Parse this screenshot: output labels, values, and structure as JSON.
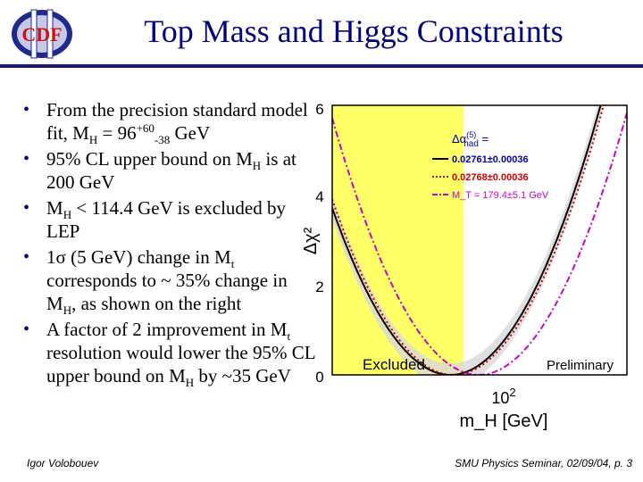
{
  "logo": {
    "letters": "CDF",
    "roman": "II"
  },
  "title": "Top Mass and Higgs Constraints",
  "bullets": [
    {
      "a": "From the precision standard model fit, M",
      "sub1": "H",
      "b": " = 96",
      "sup": "+60",
      "sub2": "-38",
      "c": " GeV"
    },
    {
      "a": "95% CL upper bound on M",
      "sub1": "H",
      "b": " is at 200 GeV"
    },
    {
      "a": "M",
      "sub1": "H",
      "b": " < 114.4 GeV is excluded by LEP"
    },
    {
      "a": "1σ (5 GeV) change in M",
      "sub1": "t",
      "b": " corresponds to ~ 35% change in M",
      "sub2": "H",
      "c": ", as shown on the right"
    },
    {
      "a": "A factor of 2 improvement in M",
      "sub1": "t",
      "b": " resolution would lower the 95% CL upper bound on M",
      "sub2": "H",
      "c": " by ~35 GeV"
    }
  ],
  "chart_data": {
    "type": "line",
    "xlabel": "m_H [GeV]",
    "ylabel": "Δχ²",
    "ylim": [
      0,
      6
    ],
    "yticks": [
      0,
      2,
      4,
      6
    ],
    "xtick_label": {
      "base": "10",
      "exp": "2"
    },
    "x_scale": "log",
    "excluded_region_label": "Excluded",
    "preliminary_label": "Preliminary",
    "legend_header": {
      "base": "Δα",
      "sup": "(5)",
      "sub": "had",
      "tail": " ="
    },
    "series": [
      {
        "name": "0.02761±0.00036",
        "color": "#000000",
        "style": "solid",
        "min_x": 96,
        "min_y": 0
      },
      {
        "name": "0.02768±0.00036",
        "color": "#cc0000",
        "style": "dotted",
        "min_x": 100,
        "min_y": 0
      },
      {
        "name": "M_T = 179.4±5.1 GeV",
        "color": "#cc00cc",
        "style": "dashdot",
        "min_x": 140,
        "min_y": 0
      }
    ],
    "colors": {
      "excluded_fill": "#ffff66",
      "band_fill": "#d8d8d8"
    }
  },
  "footer": {
    "author": "Igor Volobouev",
    "event": "SMU Physics Seminar, 02/09/04,",
    "page": "p. 3"
  }
}
